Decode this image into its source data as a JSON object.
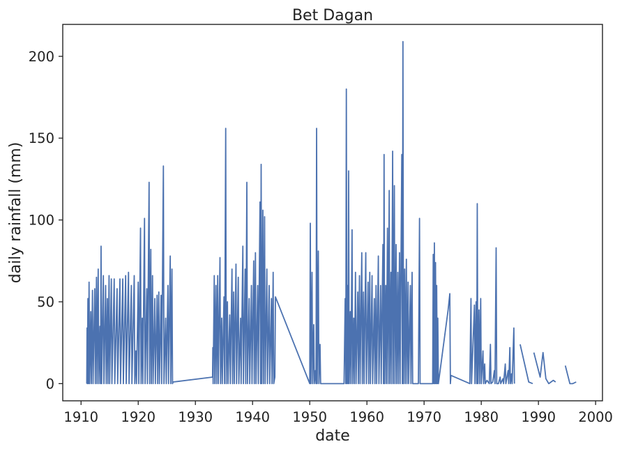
{
  "chart_data": {
    "type": "line",
    "title": "Bet Dagan",
    "xlabel": "date",
    "ylabel": "daily rainfall (mm)",
    "xlim": [
      1906.8,
      2001.2
    ],
    "ylim": [
      -10.5,
      219.5
    ],
    "x_ticks": [
      1910,
      1920,
      1930,
      1940,
      1950,
      1960,
      1970,
      1980,
      1990,
      2000
    ],
    "y_ticks": [
      0,
      50,
      100,
      150,
      200
    ],
    "grid": false,
    "line_color": "#4c72b0",
    "series": [
      {
        "points": [
          [
            1911.0,
            0
          ],
          [
            1911.05,
            34
          ],
          [
            1911.1,
            0
          ],
          [
            1911.2,
            52
          ],
          [
            1911.3,
            0
          ],
          [
            1911.4,
            62
          ],
          [
            1911.5,
            0
          ],
          [
            1911.7,
            44
          ],
          [
            1911.8,
            0
          ],
          [
            1912.0,
            57
          ],
          [
            1912.1,
            0
          ],
          [
            1912.4,
            58
          ],
          [
            1912.5,
            0
          ],
          [
            1912.7,
            65
          ],
          [
            1912.8,
            0
          ],
          [
            1913.0,
            70
          ],
          [
            1913.1,
            0
          ],
          [
            1913.3,
            35
          ],
          [
            1913.4,
            0
          ],
          [
            1913.5,
            84
          ],
          [
            1913.6,
            0
          ],
          [
            1913.9,
            66
          ],
          [
            1914.0,
            0
          ],
          [
            1914.3,
            60
          ],
          [
            1914.4,
            0
          ],
          [
            1914.6,
            52
          ],
          [
            1914.7,
            0
          ],
          [
            1914.9,
            66
          ],
          [
            1915.0,
            0
          ],
          [
            1915.3,
            64
          ],
          [
            1915.4,
            0
          ],
          [
            1915.8,
            64
          ],
          [
            1915.9,
            0
          ],
          [
            1916.3,
            58
          ],
          [
            1916.4,
            0
          ],
          [
            1916.8,
            64
          ],
          [
            1916.9,
            0
          ],
          [
            1917.3,
            64
          ],
          [
            1917.4,
            0
          ],
          [
            1917.8,
            66
          ],
          [
            1917.9,
            0
          ],
          [
            1918.3,
            68
          ],
          [
            1918.4,
            0
          ],
          [
            1918.8,
            60
          ],
          [
            1918.9,
            0
          ],
          [
            1919.3,
            66
          ],
          [
            1919.4,
            0
          ],
          [
            1919.6,
            20
          ],
          [
            1919.7,
            0
          ],
          [
            1920.0,
            62
          ],
          [
            1920.1,
            0
          ],
          [
            1920.4,
            95
          ],
          [
            1920.5,
            0
          ],
          [
            1920.7,
            40
          ],
          [
            1920.8,
            0
          ],
          [
            1921.1,
            101
          ],
          [
            1921.2,
            0
          ],
          [
            1921.5,
            58
          ],
          [
            1921.6,
            0
          ],
          [
            1921.9,
            123
          ],
          [
            1922.0,
            0
          ],
          [
            1922.2,
            82
          ],
          [
            1922.3,
            0
          ],
          [
            1922.5,
            66
          ],
          [
            1922.6,
            0
          ],
          [
            1922.9,
            52
          ],
          [
            1923.0,
            0
          ],
          [
            1923.3,
            54
          ],
          [
            1923.4,
            0
          ],
          [
            1923.6,
            56
          ],
          [
            1923.7,
            0
          ],
          [
            1924.0,
            54
          ],
          [
            1924.1,
            0
          ],
          [
            1924.4,
            133
          ],
          [
            1924.5,
            0
          ],
          [
            1924.8,
            40
          ],
          [
            1924.9,
            0
          ],
          [
            1925.2,
            60
          ],
          [
            1925.3,
            0
          ],
          [
            1925.6,
            78
          ],
          [
            1925.7,
            0
          ],
          [
            1925.9,
            70
          ],
          [
            1926.0,
            0
          ],
          [
            1926.1,
            1
          ],
          [
            1933.0,
            4
          ],
          [
            1933.05,
            22
          ],
          [
            1933.1,
            0
          ],
          [
            1933.3,
            66
          ],
          [
            1933.4,
            0
          ],
          [
            1933.6,
            60
          ],
          [
            1933.7,
            0
          ],
          [
            1933.9,
            66
          ],
          [
            1934.0,
            0
          ],
          [
            1934.3,
            77
          ],
          [
            1934.4,
            0
          ],
          [
            1934.6,
            40
          ],
          [
            1934.7,
            0
          ],
          [
            1935.0,
            53
          ],
          [
            1935.1,
            0
          ],
          [
            1935.3,
            156
          ],
          [
            1935.4,
            0
          ],
          [
            1935.6,
            50
          ],
          [
            1935.7,
            0
          ],
          [
            1936.0,
            42
          ],
          [
            1936.1,
            0
          ],
          [
            1936.4,
            70
          ],
          [
            1936.5,
            0
          ],
          [
            1936.7,
            56
          ],
          [
            1936.8,
            0
          ],
          [
            1937.1,
            73
          ],
          [
            1937.2,
            0
          ],
          [
            1937.5,
            65
          ],
          [
            1937.6,
            0
          ],
          [
            1937.9,
            40
          ],
          [
            1938.0,
            0
          ],
          [
            1938.3,
            84
          ],
          [
            1938.4,
            0
          ],
          [
            1938.7,
            70
          ],
          [
            1938.8,
            0
          ],
          [
            1939.0,
            123
          ],
          [
            1939.1,
            0
          ],
          [
            1939.4,
            52
          ],
          [
            1939.5,
            0
          ],
          [
            1939.8,
            60
          ],
          [
            1939.9,
            0
          ],
          [
            1940.2,
            75
          ],
          [
            1940.3,
            0
          ],
          [
            1940.5,
            80
          ],
          [
            1940.6,
            0
          ],
          [
            1940.9,
            60
          ],
          [
            1941.0,
            0
          ],
          [
            1941.3,
            111
          ],
          [
            1941.4,
            0
          ],
          [
            1941.5,
            134
          ],
          [
            1941.6,
            0
          ],
          [
            1941.8,
            106
          ],
          [
            1941.9,
            0
          ],
          [
            1942.1,
            102
          ],
          [
            1942.2,
            0
          ],
          [
            1942.5,
            70
          ],
          [
            1942.6,
            0
          ],
          [
            1942.9,
            60
          ],
          [
            1943.0,
            0
          ],
          [
            1943.3,
            52
          ],
          [
            1943.4,
            0
          ],
          [
            1943.6,
            68
          ],
          [
            1943.7,
            0
          ],
          [
            1943.9,
            4
          ],
          [
            1944.0,
            53
          ],
          [
            1950.0,
            0
          ],
          [
            1950.1,
            98
          ],
          [
            1950.2,
            0
          ],
          [
            1950.4,
            68
          ],
          [
            1950.5,
            0
          ],
          [
            1950.7,
            36
          ],
          [
            1950.8,
            0
          ],
          [
            1951.0,
            8
          ],
          [
            1951.1,
            0
          ],
          [
            1951.2,
            156
          ],
          [
            1951.3,
            0
          ],
          [
            1951.5,
            81
          ],
          [
            1951.6,
            0
          ],
          [
            1951.8,
            24
          ],
          [
            1951.9,
            0
          ],
          [
            1952.0,
            0
          ],
          [
            1956.0,
            0
          ],
          [
            1956.2,
            52
          ],
          [
            1956.3,
            0
          ],
          [
            1956.4,
            180
          ],
          [
            1956.5,
            0
          ],
          [
            1956.6,
            60
          ],
          [
            1956.7,
            0
          ],
          [
            1956.8,
            130
          ],
          [
            1956.9,
            0
          ],
          [
            1957.1,
            44
          ],
          [
            1957.2,
            0
          ],
          [
            1957.4,
            94
          ],
          [
            1957.5,
            0
          ],
          [
            1957.7,
            40
          ],
          [
            1957.8,
            0
          ],
          [
            1958.0,
            68
          ],
          [
            1958.1,
            0
          ],
          [
            1958.4,
            56
          ],
          [
            1958.5,
            0
          ],
          [
            1958.7,
            66
          ],
          [
            1958.8,
            0
          ],
          [
            1959.1,
            80
          ],
          [
            1959.2,
            0
          ],
          [
            1959.4,
            56
          ],
          [
            1959.5,
            0
          ],
          [
            1959.8,
            80
          ],
          [
            1959.9,
            0
          ],
          [
            1960.2,
            62
          ],
          [
            1960.3,
            0
          ],
          [
            1960.5,
            68
          ],
          [
            1960.6,
            0
          ],
          [
            1960.9,
            66
          ],
          [
            1961.0,
            0
          ],
          [
            1961.3,
            52
          ],
          [
            1961.4,
            0
          ],
          [
            1961.6,
            60
          ],
          [
            1961.7,
            0
          ],
          [
            1962.0,
            78
          ],
          [
            1962.1,
            0
          ],
          [
            1962.4,
            60
          ],
          [
            1962.5,
            0
          ],
          [
            1962.8,
            85
          ],
          [
            1962.9,
            0
          ],
          [
            1963.0,
            140
          ],
          [
            1963.1,
            0
          ],
          [
            1963.3,
            60
          ],
          [
            1963.4,
            0
          ],
          [
            1963.6,
            95
          ],
          [
            1963.7,
            0
          ],
          [
            1963.9,
            118
          ],
          [
            1964.0,
            0
          ],
          [
            1964.2,
            68
          ],
          [
            1964.3,
            0
          ],
          [
            1964.5,
            142
          ],
          [
            1964.6,
            0
          ],
          [
            1964.8,
            121
          ],
          [
            1964.9,
            0
          ],
          [
            1965.1,
            85
          ],
          [
            1965.2,
            0
          ],
          [
            1965.4,
            68
          ],
          [
            1965.5,
            0
          ],
          [
            1965.7,
            80
          ],
          [
            1965.8,
            0
          ],
          [
            1966.1,
            140
          ],
          [
            1966.2,
            0
          ],
          [
            1966.3,
            209
          ],
          [
            1966.4,
            0
          ],
          [
            1966.6,
            70
          ],
          [
            1966.7,
            0
          ],
          [
            1966.9,
            76
          ],
          [
            1967.0,
            0
          ],
          [
            1967.2,
            62
          ],
          [
            1967.3,
            0
          ],
          [
            1967.6,
            60
          ],
          [
            1967.7,
            0
          ],
          [
            1967.9,
            68
          ],
          [
            1968.0,
            0
          ],
          [
            1968.1,
            0
          ],
          [
            1969.0,
            0
          ],
          [
            1969.2,
            101
          ],
          [
            1969.3,
            0
          ],
          [
            1971.5,
            0
          ],
          [
            1971.6,
            79
          ],
          [
            1971.7,
            0
          ],
          [
            1971.8,
            86
          ],
          [
            1971.9,
            0
          ],
          [
            1972.0,
            74
          ],
          [
            1972.1,
            0
          ],
          [
            1972.2,
            60
          ],
          [
            1972.3,
            0
          ],
          [
            1972.4,
            40
          ],
          [
            1972.5,
            0
          ],
          [
            1974.2,
            45
          ],
          [
            1974.5,
            55
          ],
          [
            1974.6,
            0
          ],
          [
            1974.7,
            5
          ],
          [
            1978.0,
            0
          ],
          [
            1978.2,
            52
          ],
          [
            1978.3,
            0
          ],
          [
            1978.8,
            48
          ],
          [
            1978.9,
            0
          ],
          [
            1979.1,
            50
          ],
          [
            1979.2,
            0
          ],
          [
            1979.3,
            110
          ],
          [
            1979.4,
            0
          ],
          [
            1979.6,
            45
          ],
          [
            1979.7,
            0
          ],
          [
            1979.9,
            52
          ],
          [
            1980.0,
            0
          ],
          [
            1980.3,
            20
          ],
          [
            1980.4,
            0
          ],
          [
            1980.6,
            12
          ],
          [
            1980.7,
            0
          ],
          [
            1981.0,
            2
          ],
          [
            1981.4,
            0
          ],
          [
            1981.6,
            24
          ],
          [
            1981.7,
            0
          ],
          [
            1982.0,
            1
          ],
          [
            1982.3,
            8
          ],
          [
            1982.4,
            0
          ],
          [
            1982.6,
            83
          ],
          [
            1982.7,
            0
          ],
          [
            1983.0,
            0
          ],
          [
            1983.3,
            4
          ],
          [
            1983.4,
            0
          ],
          [
            1983.8,
            3
          ],
          [
            1983.9,
            0
          ],
          [
            1984.2,
            12
          ],
          [
            1984.3,
            0
          ],
          [
            1984.7,
            8
          ],
          [
            1984.8,
            0
          ],
          [
            1985.0,
            22
          ],
          [
            1985.1,
            0
          ],
          [
            1985.3,
            6
          ],
          [
            1985.4,
            0
          ],
          [
            1985.7,
            34
          ],
          [
            1985.8,
            0
          ]
        ]
      },
      {
        "points": [
          [
            1986.8,
            24
          ],
          [
            1988.3,
            1
          ],
          [
            1989.0,
            0
          ]
        ]
      },
      {
        "points": [
          [
            1989.2,
            19
          ],
          [
            1990.3,
            4
          ],
          [
            1990.8,
            19
          ],
          [
            1991.3,
            3
          ],
          [
            1991.8,
            0
          ],
          [
            1992.6,
            2
          ],
          [
            1993.0,
            1
          ]
        ]
      },
      {
        "points": [
          [
            1994.7,
            11
          ],
          [
            1995.5,
            0
          ],
          [
            1996.0,
            0
          ],
          [
            1996.6,
            1
          ]
        ]
      }
    ]
  }
}
